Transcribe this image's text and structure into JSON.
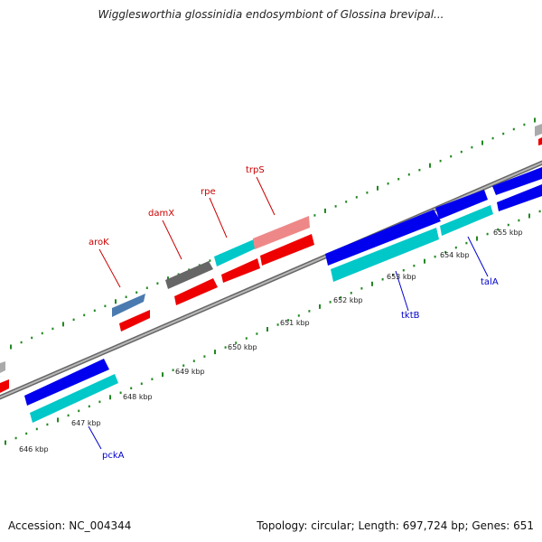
{
  "title": "Wigglesworthia glossinidia endosymbiont of Glossina brevipal...",
  "footer": {
    "accession": "Accession: NC_004344",
    "summary": "Topology: circular; Length: 697,724 bp; Genes: 651"
  },
  "scale_labels": [
    "646 kbp",
    "647 kbp",
    "648 kbp",
    "649 kbp",
    "650 kbp",
    "651 kbp",
    "652 kbp",
    "653 kbp",
    "654 kbp",
    "655 kbp"
  ],
  "gene_labels": {
    "top": [
      "aroK",
      "damX",
      "rpe",
      "trpS"
    ],
    "bottom": [
      "pckA",
      "tktB",
      "talA"
    ]
  },
  "colors": {
    "label_top": "#cc0000",
    "label_bottom": "#0000cc",
    "forward_cds": "#0000ee",
    "forward_rna": "#00c8c8",
    "reverse_cds": "#ee0000",
    "reverse_rna_light": "#ee8888",
    "reverse_gray": "#666666",
    "reverse_steel": "#4a7ab0",
    "tick": "#228822",
    "backbone": "#888888"
  }
}
